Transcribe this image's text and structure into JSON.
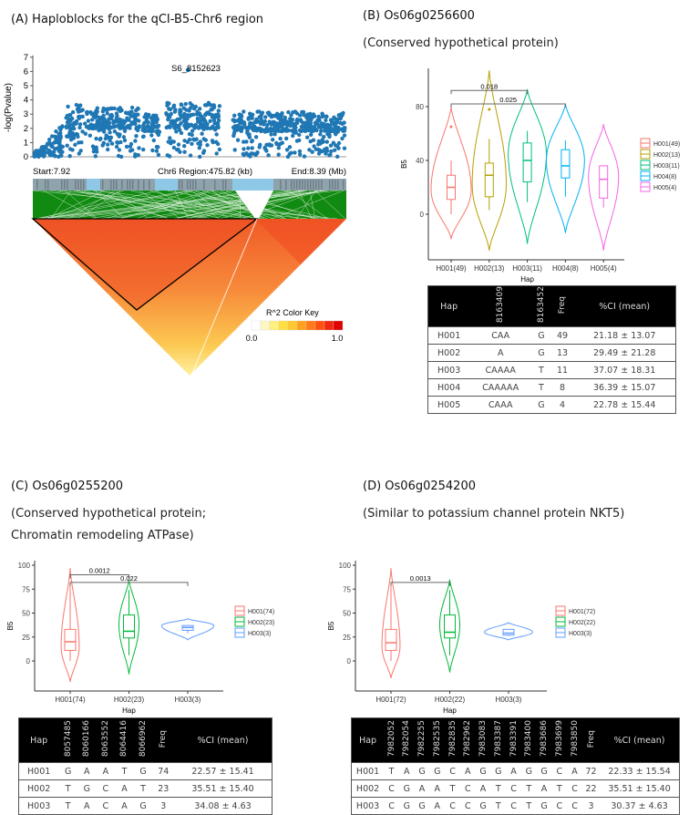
{
  "panels": {
    "a": {
      "title": "(A) Haploblocks for the qCI-B5-Chr6 region"
    },
    "b": {
      "title": "(B) Os06g0256600",
      "subtitle": "(Conserved hypothetical protein)"
    },
    "c": {
      "title": "(C) Os06g0255200",
      "subtitle1": "(Conserved hypothetical protein;",
      "subtitle2": "Chromatin remodeling ATPase)"
    },
    "d": {
      "title": "(D) Os06g0254200",
      "subtitle": "(Similar to potassium channel protein NKT5)"
    }
  },
  "chart_data": [
    {
      "type": "scatter",
      "id": "manhattan",
      "ylabel": "-log(Pvalue)",
      "ylim": [
        0,
        7
      ],
      "yticks": [
        "0",
        "1",
        "2",
        "3",
        "4",
        "5",
        "6",
        "7"
      ],
      "xlim_mb": [
        7.92,
        8.39
      ],
      "start_label": "Start:7.92",
      "region_label": "Chr6 Region:475.82 (kb)",
      "end_label": "End:8.39 (Mb)",
      "peak": {
        "label": "S6_8152623",
        "x_mb": 8.1526,
        "y": 6.1
      },
      "segments_mb": [
        [
          7.922,
          7.965,
          0.3,
          2.3
        ],
        [
          7.97,
          7.995,
          1.4,
          3.8
        ],
        [
          7.998,
          8.08,
          2.0,
          3.5
        ],
        [
          8.085,
          8.11,
          1.8,
          3.0
        ],
        [
          8.12,
          8.2,
          2.0,
          3.8
        ],
        [
          8.22,
          8.388,
          1.8,
          3.2
        ]
      ],
      "color": "#1f77b4",
      "ld_heatmap": {
        "color_key_title": "R^2 Color Key",
        "key_min": "0.0",
        "key_max": "1.0",
        "key_colors": [
          "#ffffff",
          "#fff7c0",
          "#ffee80",
          "#ffe040",
          "#ffc830",
          "#ffa020",
          "#ff7a18",
          "#ff5010",
          "#f02810",
          "#e00000"
        ]
      }
    },
    {
      "type": "violin",
      "id": "b",
      "xlabel": "Hap",
      "ylabel": "B5",
      "yticks": [
        0,
        40,
        80
      ],
      "groups": [
        {
          "label": "H001(49)",
          "color": "#F8766D",
          "min": -18,
          "max": 80,
          "mode": 18,
          "width": 1.0,
          "q1": 11,
          "median": 20,
          "q3": 29,
          "wlo": 0,
          "whi": 40,
          "outliers": [
            65
          ]
        },
        {
          "label": "H002(13)",
          "color": "#B79F00",
          "min": -27,
          "max": 107,
          "mode": 22,
          "width": 0.85,
          "q1": 13,
          "median": 29,
          "q3": 38,
          "wlo": 3,
          "whi": 56,
          "outliers": [
            78
          ]
        },
        {
          "label": "H003(11)",
          "color": "#00BF7D",
          "min": -22,
          "max": 93,
          "mode": 45,
          "width": 0.95,
          "q1": 24,
          "median": 40,
          "q3": 53,
          "wlo": 9,
          "whi": 62,
          "outliers": []
        },
        {
          "label": "H004(8)",
          "color": "#00B0F6",
          "min": -14,
          "max": 82,
          "mode": 40,
          "width": 0.95,
          "q1": 27,
          "median": 36,
          "q3": 48,
          "wlo": 13,
          "whi": 55,
          "outliers": []
        },
        {
          "label": "H005(4)",
          "color": "#F564E3",
          "min": -27,
          "max": 67,
          "mode": 28,
          "width": 0.75,
          "q1": 12,
          "median": 26,
          "q3": 36,
          "wlo": 5,
          "whi": 36,
          "outliers": []
        }
      ],
      "comparisons": [
        {
          "from": 0,
          "to": 2,
          "y": 92,
          "p": "0.018"
        },
        {
          "from": 0,
          "to": 3,
          "y": 82,
          "p": "0.025"
        }
      ]
    },
    {
      "type": "violin",
      "id": "c",
      "xlabel": "Hap",
      "ylabel": "B5",
      "yticks": [
        0,
        25,
        50,
        75,
        100
      ],
      "groups": [
        {
          "label": "H001(74)",
          "color": "#F8766D",
          "min": -22,
          "max": 97,
          "mode": 15,
          "width": 0.45,
          "q1": 11,
          "median": 20,
          "q3": 33,
          "wlo": 0,
          "whi": 78,
          "outliers": []
        },
        {
          "label": "H002(23)",
          "color": "#00BA38",
          "min": -14,
          "max": 85,
          "mode": 38,
          "width": 0.5,
          "q1": 24,
          "median": 31,
          "q3": 48,
          "wlo": 6,
          "whi": 74,
          "outliers": []
        },
        {
          "label": "H003(3)",
          "color": "#619CFF",
          "min": 22,
          "max": 44,
          "mode": 37,
          "width": 1.3,
          "q1": 32,
          "median": 35,
          "q3": 37,
          "wlo": 29,
          "whi": 37,
          "outliers": []
        }
      ],
      "comparisons": [
        {
          "from": 0,
          "to": 1,
          "y": 90,
          "p": "0.0012"
        },
        {
          "from": 0,
          "to": 2,
          "y": 82,
          "p": "0.022"
        }
      ]
    },
    {
      "type": "violin",
      "id": "d",
      "xlabel": "Hap",
      "ylabel": "B5",
      "yticks": [
        0,
        25,
        50,
        75,
        100
      ],
      "groups": [
        {
          "label": "H001(72)",
          "color": "#F8766D",
          "min": -18,
          "max": 97,
          "mode": 15,
          "width": 0.45,
          "q1": 11,
          "median": 19,
          "q3": 33,
          "wlo": 0,
          "whi": 78,
          "outliers": []
        },
        {
          "label": "H002(22)",
          "color": "#00BA38",
          "min": -12,
          "max": 85,
          "mode": 38,
          "width": 0.5,
          "q1": 24,
          "median": 30,
          "q3": 48,
          "wlo": 6,
          "whi": 74,
          "outliers": []
        },
        {
          "label": "H003(3)",
          "color": "#619CFF",
          "min": 22,
          "max": 40,
          "mode": 30,
          "width": 1.2,
          "q1": 27,
          "median": 29,
          "q3": 33,
          "wlo": 26,
          "whi": 33,
          "outliers": []
        }
      ],
      "comparisons": [
        {
          "from": 0,
          "to": 1,
          "y": 82,
          "p": "0.0013"
        }
      ]
    }
  ],
  "tables": {
    "b": {
      "headers": [
        "Hap",
        "8163409",
        "8163452",
        "Freq",
        "%CI (mean)"
      ],
      "rows": [
        [
          "H001",
          "CAA",
          "G",
          "49",
          "21.18 ± 13.07"
        ],
        [
          "H002",
          "A",
          "G",
          "13",
          "29.49 ± 21.28"
        ],
        [
          "H003",
          "CAAAA",
          "T",
          "11",
          "37.07 ± 18.31"
        ],
        [
          "H004",
          "CAAAAA",
          "T",
          "8",
          "36.39 ± 15.07"
        ],
        [
          "H005",
          "CAAA",
          "G",
          "4",
          "22.78 ± 15.44"
        ]
      ]
    },
    "c": {
      "headers": [
        "Hap",
        "8057485",
        "8060166",
        "8063552",
        "8064416",
        "8066962",
        "Freq",
        "%CI (mean)"
      ],
      "rows": [
        [
          "H001",
          "G",
          "A",
          "A",
          "T",
          "G",
          "74",
          "22.57 ± 15.41"
        ],
        [
          "H002",
          "T",
          "G",
          "C",
          "A",
          "T",
          "23",
          "35.51 ± 15.40"
        ],
        [
          "H003",
          "T",
          "A",
          "C",
          "A",
          "G",
          "3",
          "34.08 ± 4.63"
        ]
      ]
    },
    "d": {
      "headers": [
        "Hap",
        "7982052",
        "7982054",
        "7982255",
        "7982535",
        "7982835",
        "7982962",
        "7983083",
        "7983387",
        "7983391",
        "7983400",
        "7983686",
        "7983699",
        "7983850",
        "Freq",
        "%CI (mean)"
      ],
      "rows": [
        [
          "H001",
          "T",
          "A",
          "G",
          "G",
          "C",
          "A",
          "G",
          "G",
          "A",
          "G",
          "G",
          "C",
          "A",
          "72",
          "22.33 ± 15.54"
        ],
        [
          "H002",
          "C",
          "G",
          "A",
          "A",
          "T",
          "C",
          "A",
          "T",
          "C",
          "T",
          "A",
          "T",
          "C",
          "22",
          "35.51 ± 15.40"
        ],
        [
          "H003",
          "C",
          "G",
          "G",
          "A",
          "C",
          "C",
          "G",
          "T",
          "C",
          "T",
          "G",
          "C",
          "C",
          "3",
          "30.37 ± 4.63"
        ]
      ]
    }
  }
}
